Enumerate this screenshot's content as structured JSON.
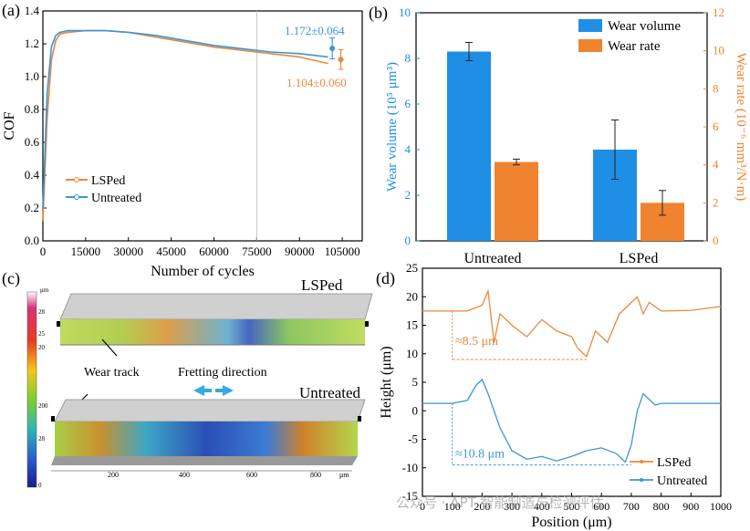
{
  "panel_labels": [
    "(a)",
    "(b)",
    "(c)",
    "(d)"
  ],
  "watermark": "公众号 · APT 智能制造与检测评估",
  "colors": {
    "lsped": "#e8893c",
    "untreated": "#3a96d8",
    "bar_blue": "#1f8fe6",
    "bar_orange": "#f0832f"
  },
  "chart_data": [
    {
      "id": "a",
      "type": "line",
      "ylabel": "COF",
      "xlabel": "Number of cycles",
      "xlim": [
        0,
        112000
      ],
      "ylim": [
        0,
        1.4
      ],
      "xticks": [
        0,
        15000,
        30000,
        45000,
        60000,
        75000,
        90000,
        105000
      ],
      "yticks": [
        0.0,
        0.2,
        0.4,
        0.6,
        0.8,
        1.0,
        1.2,
        1.4
      ],
      "yticklabels": [
        "0.0",
        "0.2",
        "0.4",
        "0.6",
        "0.8",
        "1.0",
        "1.2",
        "1.4"
      ],
      "legend": [
        "LSPed",
        "Untreated"
      ],
      "series": [
        {
          "name": "LSPed",
          "x": [
            0,
            1500,
            3000,
            4500,
            6000,
            9000,
            15000,
            22000,
            30000,
            40000,
            50000,
            60000,
            70000,
            80000,
            90000,
            95000,
            100000
          ],
          "y": [
            0.12,
            0.75,
            1.1,
            1.22,
            1.26,
            1.27,
            1.28,
            1.28,
            1.27,
            1.24,
            1.21,
            1.18,
            1.16,
            1.14,
            1.12,
            1.1,
            1.08
          ]
        },
        {
          "name": "Untreated",
          "x": [
            0,
            1500,
            3000,
            4500,
            6000,
            9000,
            15000,
            22000,
            30000,
            40000,
            50000,
            60000,
            70000,
            80000,
            90000,
            95000,
            100000
          ],
          "y": [
            0.2,
            0.9,
            1.18,
            1.25,
            1.27,
            1.28,
            1.28,
            1.28,
            1.27,
            1.25,
            1.22,
            1.19,
            1.17,
            1.15,
            1.14,
            1.13,
            1.12
          ]
        }
      ],
      "annotations": [
        {
          "text": "1.172±0.064",
          "series": "Untreated",
          "x": 101500,
          "mean": 1.172,
          "err": 0.064
        },
        {
          "text": "1.104±0.060",
          "series": "LSPed",
          "x": 104500,
          "mean": 1.104,
          "err": 0.06
        }
      ],
      "vline_x": 75000
    },
    {
      "id": "b",
      "type": "bar",
      "categories": [
        "Untreated",
        "LSPed"
      ],
      "ylabel_left": "Wear volume (10⁵ μm³)",
      "ylabel_right": "Wear rate (10⁻⁶ mm³/N·m)",
      "ylim_left": [
        0,
        10
      ],
      "ylim_right": [
        0,
        12
      ],
      "yticks_left": [
        0,
        2,
        4,
        6,
        8,
        10
      ],
      "yticks_right": [
        0,
        2,
        4,
        6,
        8,
        10,
        12
      ],
      "series": [
        {
          "name": "Wear volume",
          "axis": "left",
          "values": [
            8.3,
            4.0
          ],
          "errors": [
            0.4,
            1.3
          ]
        },
        {
          "name": "Wear rate",
          "axis": "right",
          "values": [
            4.15,
            2.0
          ],
          "errors": [
            0.15,
            0.65
          ]
        }
      ]
    },
    {
      "id": "d",
      "type": "line",
      "ylabel": "Height (μm)",
      "xlabel": "Position (μm)",
      "xlim": [
        0,
        1000
      ],
      "ylim": [
        -15,
        25
      ],
      "xticks": [
        0,
        100,
        200,
        300,
        400,
        500,
        600,
        700,
        800,
        900,
        1000
      ],
      "yticks": [
        -15,
        -10,
        -5,
        0,
        5,
        10,
        15,
        20,
        25
      ],
      "legend": [
        "LSPed",
        "Untreated"
      ],
      "series": [
        {
          "name": "LSPed",
          "x": [
            0,
            100,
            150,
            200,
            220,
            240,
            260,
            300,
            350,
            400,
            450,
            500,
            520,
            550,
            580,
            620,
            660,
            700,
            720,
            740,
            760,
            800,
            900,
            1000
          ],
          "y": [
            17.5,
            17.5,
            17.5,
            18.5,
            21,
            12,
            17,
            15,
            13,
            16,
            14,
            13,
            11,
            9.5,
            14,
            12,
            17,
            19,
            20,
            17,
            19,
            17.5,
            17.6,
            18.3
          ]
        },
        {
          "name": "Untreated",
          "x": [
            0,
            100,
            150,
            180,
            200,
            220,
            240,
            260,
            300,
            350,
            400,
            450,
            500,
            550,
            600,
            650,
            680,
            700,
            720,
            740,
            780,
            800,
            900,
            1000
          ],
          "y": [
            1.3,
            1.3,
            1.8,
            4.5,
            5.5,
            3,
            0,
            -3,
            -7,
            -8.5,
            -8,
            -8.8,
            -8,
            -7,
            -6.5,
            -7.5,
            -9,
            -6,
            0,
            3,
            1,
            1.3,
            1.3,
            1.3
          ]
        }
      ],
      "annotations": [
        {
          "text": "≈8.5 μm",
          "from": 17.5,
          "to": 9.0
        },
        {
          "text": "≈10.8 μm",
          "from": 1.3,
          "to": -9.5
        }
      ]
    }
  ],
  "panel_c": {
    "top_label": "LSPed",
    "bottom_label": "Untreated",
    "wear_track": "Wear track",
    "fretting": "Fretting direction",
    "colorbar_unit": "μm",
    "colorbar_ticks_top": [
      "28",
      "25",
      "20"
    ],
    "colorbar_ticks_bottom": [
      "200",
      "28",
      "0"
    ],
    "axis_ticks": [
      "200",
      "400",
      "600",
      "800"
    ],
    "axis_unit": "μm"
  }
}
